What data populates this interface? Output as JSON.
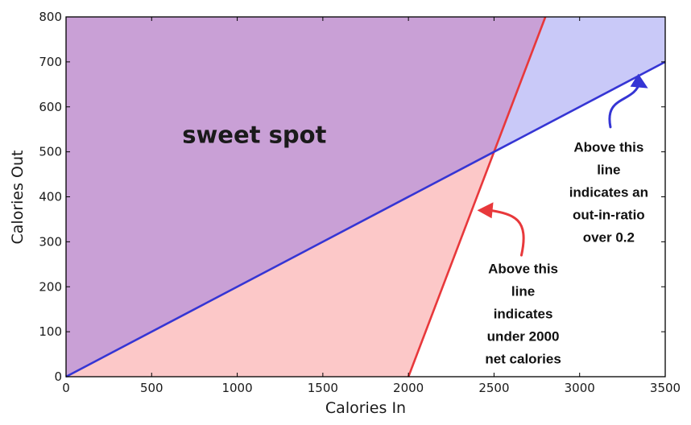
{
  "chart_data": {
    "type": "area",
    "xlabel": "Calories In",
    "ylabel": "Calories Out",
    "xlim": [
      0,
      3500
    ],
    "ylim": [
      0,
      800
    ],
    "xticks": [
      "0",
      "500",
      "1000",
      "1500",
      "2000",
      "2500",
      "3000",
      "3500"
    ],
    "yticks": [
      "0",
      "100",
      "200",
      "300",
      "400",
      "500",
      "600",
      "700",
      "800"
    ],
    "grid": false,
    "series": [
      {
        "color": "#e8383b",
        "x": [
          2000,
          2800
        ],
        "y": [
          0,
          800
        ]
      },
      {
        "color": "#3535d4",
        "x": [
          0,
          3500
        ],
        "y": [
          0,
          700
        ]
      }
    ],
    "regions": [
      {
        "color": "#c9a0d6",
        "bounds": "above both lines"
      },
      {
        "color": "#fcc8c8",
        "bounds": "above red line only"
      },
      {
        "color": "#c9c9f8",
        "bounds": "above blue line only"
      }
    ],
    "annotations": [
      {
        "text": "sweet spot",
        "x": 1100,
        "y": 520
      },
      {
        "lines": [
          "Above this",
          "line",
          "indicates an",
          "out-in-ratio",
          "over 0.2"
        ],
        "x": 3170,
        "y": 500,
        "color": "#3535d4"
      },
      {
        "lines": [
          "Above this",
          "line",
          "indicates",
          "under 2000",
          "net calories"
        ],
        "x": 2670,
        "y": 230,
        "color": "#e8383b"
      }
    ]
  }
}
